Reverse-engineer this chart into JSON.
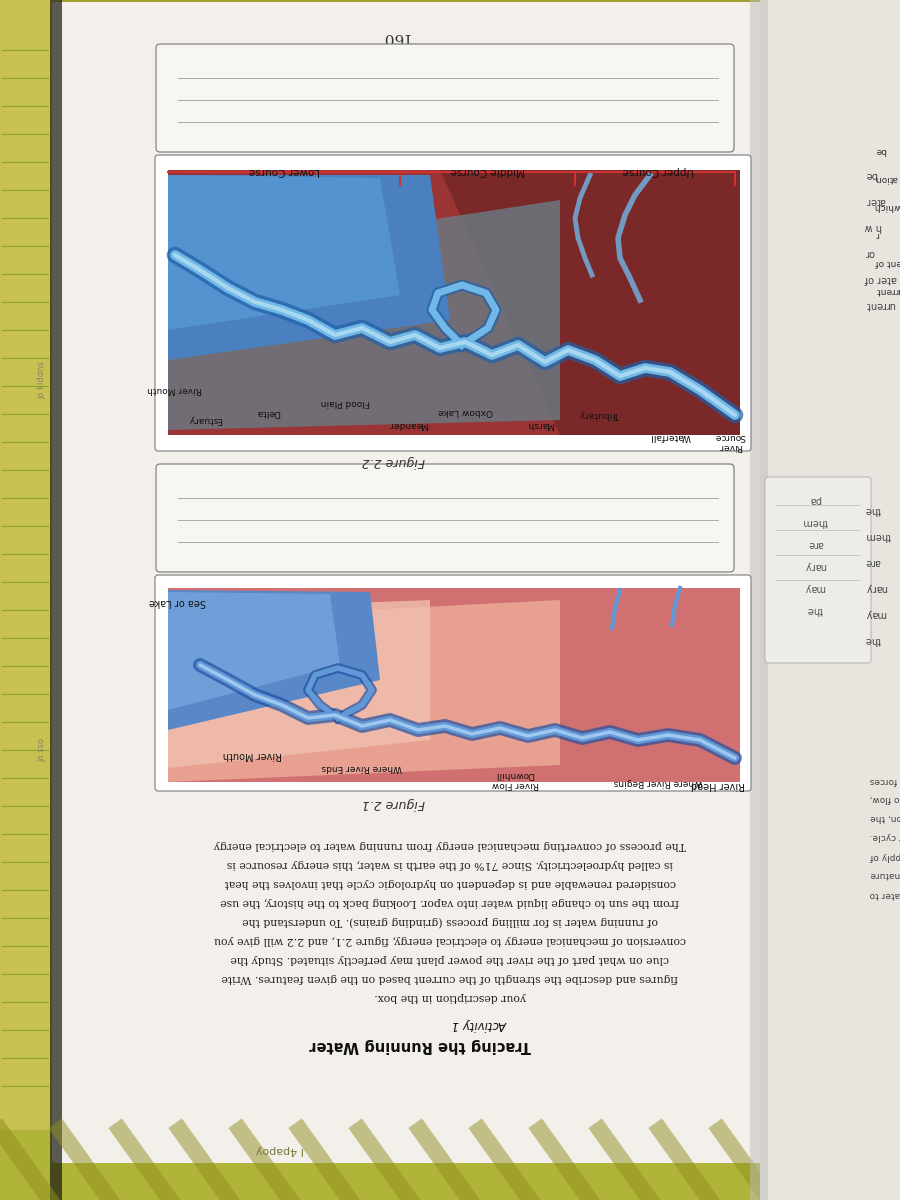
{
  "page_bg_color": "#f2eeea",
  "left_bg": "#c8b840",
  "bottom_bg": "#b8b840",
  "page_number": "160",
  "fig22_caption": "Figure 2.2",
  "fig21_caption": "Figure 2.1",
  "activity_title": "Activity 1",
  "activity_subtitle": "Tracing the Running Water",
  "body_text_lines": [
    "The process of converting mechanical energy from running water to electrical energy",
    "is called hydroelectricity. Since 71% of the earth is water, this energy resource is",
    "considered renewable and is dependent on hydrologic cycle that involves the heat",
    "from the sun to change liquid water into vapor. Looking back to the history, the use",
    "of running water is for milling process (grinding grains). To understand the",
    "conversion of mechanical energy to electrical energy, figure 2.1, and 2.2 will give you",
    "clue on what part of the river the power plant may perfectly situated. Study the",
    "figures and describe the strength of the current based on the given features. Write",
    "your description in the box."
  ],
  "right_margin1": [
    "be",
    "ater",
    "h w",
    "or",
    "ater of",
    "urrent"
  ],
  "right_margin2": [
    "the",
    "them",
    "are",
    "nary",
    "may",
    "the"
  ],
  "left_vert_text1": "jo kiddns",
  "left_vert_text2": "jo sso"
}
